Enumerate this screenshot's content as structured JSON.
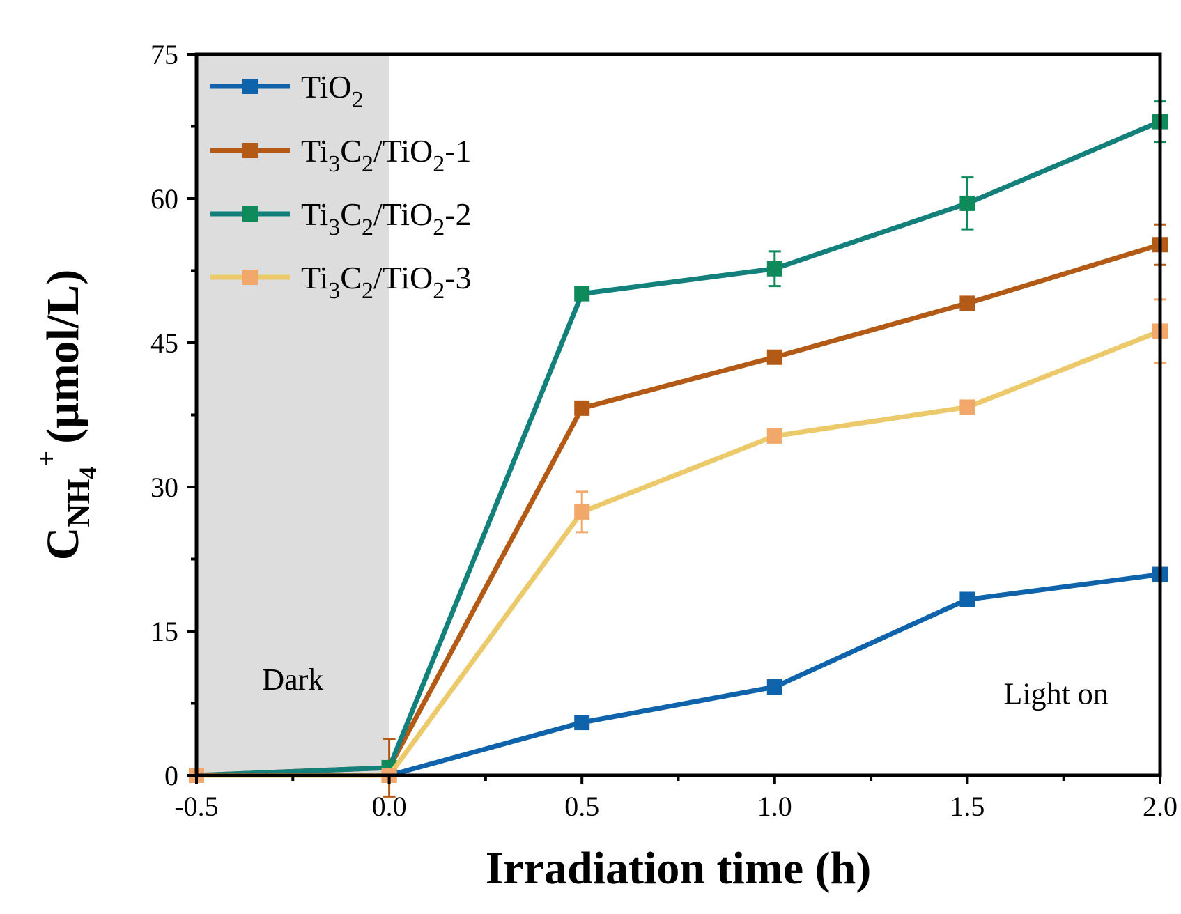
{
  "chart_data": {
    "type": "line",
    "title": "",
    "xlabel": "Irradiation time (h)",
    "ylabel": {
      "main": "C",
      "sub": "NH",
      "sub2": "4",
      "sup": "+",
      "units": "(μmol/L)"
    },
    "xlim": [
      -0.5,
      2.0
    ],
    "ylim": [
      0,
      75
    ],
    "xticks": [
      -0.5,
      0.0,
      0.5,
      1.0,
      1.5,
      2.0
    ],
    "xtick_labels": [
      "-0.5",
      "0.0",
      "0.5",
      "1.0",
      "1.5",
      "2.0"
    ],
    "yticks": [
      0,
      15,
      30,
      45,
      60,
      75
    ],
    "ytick_labels": [
      "0",
      "15",
      "30",
      "45",
      "60",
      "75"
    ],
    "grid": false,
    "legend_position": "top-left",
    "shaded_region": {
      "x_range": [
        -0.5,
        0.0
      ],
      "color": "#dddddd"
    },
    "annotations": [
      {
        "text": "Dark",
        "x": -0.25,
        "y": 10
      },
      {
        "text": "Light on",
        "x": 1.73,
        "y": 8.5
      }
    ],
    "series": [
      {
        "name": "TiO2",
        "label": {
          "parts": [
            [
              "Ti",
              ""
            ],
            [
              "O",
              ""
            ],
            [
              "2",
              "sub"
            ]
          ]
        },
        "color": "#0e63ab",
        "marker_color": "#0e63ab",
        "x": [
          -0.5,
          0.0,
          0.5,
          1.0,
          1.5,
          2.0
        ],
        "y": [
          0,
          0,
          5.5,
          9.2,
          18.3,
          20.9
        ],
        "err": [
          0,
          0,
          0,
          0,
          0,
          0
        ]
      },
      {
        "name": "Ti3C2/TiO2-1",
        "label": {
          "parts": [
            [
              "Ti",
              ""
            ],
            [
              "3",
              "sub"
            ],
            [
              "C",
              ""
            ],
            [
              "2",
              "sub"
            ],
            [
              "/TiO",
              ""
            ],
            [
              "2",
              "sub"
            ],
            [
              "-1",
              ""
            ]
          ]
        },
        "color": "#b35a17",
        "marker_color": "#b35a17",
        "x": [
          -0.5,
          0.0,
          0.5,
          1.0,
          1.5,
          2.0
        ],
        "y": [
          0,
          0.8,
          38.2,
          43.5,
          49.1,
          55.2
        ],
        "err": [
          0,
          3.0,
          0,
          0,
          0,
          2.1
        ]
      },
      {
        "name": "Ti3C2/TiO2-2",
        "label": {
          "parts": [
            [
              "Ti",
              ""
            ],
            [
              "3",
              "sub"
            ],
            [
              "C",
              ""
            ],
            [
              "2",
              "sub"
            ],
            [
              "/TiO",
              ""
            ],
            [
              "2",
              "sub"
            ],
            [
              "-2",
              ""
            ]
          ]
        },
        "color": "#13807b",
        "marker_color": "#0f8a5a",
        "x": [
          -0.5,
          0.0,
          0.5,
          1.0,
          1.5,
          2.0
        ],
        "y": [
          0,
          0.8,
          50.1,
          52.7,
          59.5,
          68
        ],
        "err": [
          0,
          0,
          0,
          1.8,
          2.7,
          2.1
        ]
      },
      {
        "name": "Ti3C2/TiO2-3",
        "label": {
          "parts": [
            [
              "Ti",
              ""
            ],
            [
              "3",
              "sub"
            ],
            [
              "C",
              ""
            ],
            [
              "2",
              "sub"
            ],
            [
              "/TiO",
              ""
            ],
            [
              "2",
              "sub"
            ],
            [
              "-3",
              ""
            ]
          ]
        },
        "color": "#ecc96a",
        "marker_color": "#f2a86a",
        "x": [
          -0.5,
          0.0,
          0.5,
          1.0,
          1.5,
          2.0
        ],
        "y": [
          0,
          0,
          27.4,
          35.3,
          38.3,
          46.2
        ],
        "err": [
          0,
          0,
          2.1,
          0,
          0,
          3.3
        ]
      }
    ]
  }
}
